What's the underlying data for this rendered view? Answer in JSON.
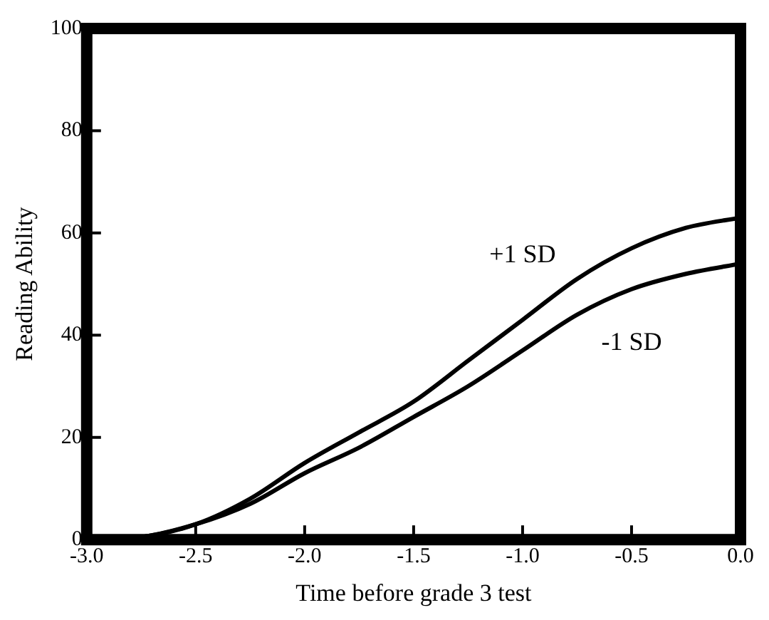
{
  "chart_data": {
    "type": "line",
    "xlabel": "Time before grade 3 test",
    "ylabel": "Reading Ability",
    "xlim": [
      -3.0,
      0.0
    ],
    "xticks": [
      {
        "value": -3,
        "label": "-3.0"
      },
      -2.5,
      {
        "value": -2,
        "label": "-2.0"
      },
      -1.5,
      {
        "value": -1,
        "label": "-1.0"
      },
      -0.5,
      {
        "value": 0,
        "label": "0.0"
      }
    ],
    "ylim": [
      0,
      100
    ],
    "yticks": [
      0,
      20,
      40,
      60,
      80,
      100
    ],
    "grid": false,
    "legend": false,
    "marker": "none",
    "line_style": "solid",
    "series": [
      {
        "name": "+1 SD",
        "color": "#000000",
        "x": [
          -3.0,
          -2.75,
          -2.5,
          -2.25,
          -2.0,
          -1.75,
          -1.5,
          -1.25,
          -1.0,
          -0.75,
          -0.5,
          -0.25,
          0.0
        ],
        "values": [
          0,
          0.5,
          3,
          8,
          15,
          21,
          27,
          35,
          43,
          51,
          57,
          61,
          63
        ]
      },
      {
        "name": "-1 SD",
        "color": "#000000",
        "x": [
          -3.0,
          -2.75,
          -2.5,
          -2.25,
          -2.0,
          -1.75,
          -1.5,
          -1.25,
          -1.0,
          -0.75,
          -0.5,
          -0.25,
          0.0
        ],
        "values": [
          0,
          0.5,
          3,
          7,
          13,
          18,
          24,
          30,
          37,
          44,
          49,
          52,
          54
        ]
      }
    ]
  }
}
